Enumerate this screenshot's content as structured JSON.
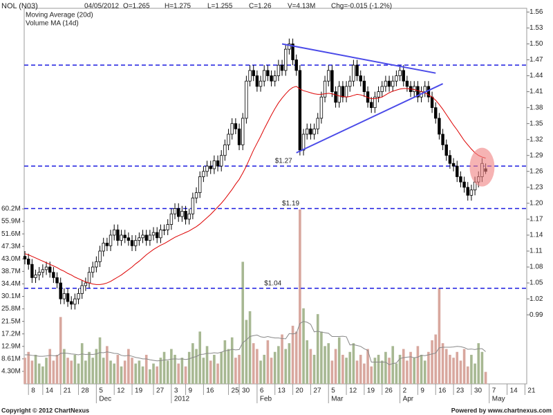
{
  "chart_data": {
    "type": "candlestick",
    "header": {
      "symbol": "NOL (N03)",
      "date": "04/05/2012",
      "open": "O=1.265",
      "high": "H=1.275",
      "low": "L=1.255",
      "close": "C=1.26",
      "volume": "V=4.13M",
      "change": "Chg=-0.015 (-1.2%)"
    },
    "legend": [
      {
        "name": "Moving Average (20d)",
        "color": "#dd0000"
      },
      {
        "name": "Volume MA (14d)",
        "color": "#888888"
      }
    ],
    "footer_left": "Copyright © 2012 ChartNexus",
    "footer_right": "Powered by www.chartnexus.com",
    "up_color": "#ffffff",
    "down_color": "#000000",
    "volume_up_color": "#a7b892",
    "volume_down_color": "#d8a79e",
    "xlim": [
      -0.2,
      140.5
    ],
    "ylim": [
      0.86,
      1.567
    ],
    "y2lim": [
      0,
      129.2
    ],
    "xticks": [
      {
        "value": 1,
        "label": "8"
      },
      {
        "value": 5,
        "label": "14"
      },
      {
        "value": 10,
        "label": "21"
      },
      {
        "value": 15,
        "label": "28"
      },
      {
        "value": 20,
        "label": "5"
      },
      {
        "value": 25,
        "label": "12"
      },
      {
        "value": 30,
        "label": "19"
      },
      {
        "value": 36,
        "label": "27"
      },
      {
        "value": 41,
        "label": "3"
      },
      {
        "value": 45,
        "label": "9"
      },
      {
        "value": 50,
        "label": "16"
      },
      {
        "value": 57,
        "label": "25"
      },
      {
        "value": 60,
        "label": "30"
      },
      {
        "value": 65,
        "label": "6"
      },
      {
        "value": 70,
        "label": "13"
      },
      {
        "value": 75,
        "label": "20"
      },
      {
        "value": 80,
        "label": "27"
      },
      {
        "value": 85,
        "label": "5"
      },
      {
        "value": 90,
        "label": "12"
      },
      {
        "value": 95,
        "label": "19"
      },
      {
        "value": 100,
        "label": "26"
      },
      {
        "value": 105,
        "label": "2"
      },
      {
        "value": 110,
        "label": "9"
      },
      {
        "value": 115,
        "label": "16"
      },
      {
        "value": 120,
        "label": "23"
      },
      {
        "value": 125,
        "label": "30"
      },
      {
        "value": 130,
        "label": "7"
      },
      {
        "value": 135,
        "label": "14"
      },
      {
        "value": 140,
        "label": "21"
      }
    ],
    "xperiods": [
      {
        "value": 20,
        "label": "Dec"
      },
      {
        "value": 41,
        "label": "2012"
      },
      {
        "value": 65,
        "label": "Feb"
      },
      {
        "value": 85,
        "label": "Mar"
      },
      {
        "value": 105,
        "label": "Apr"
      },
      {
        "value": 130,
        "label": "May"
      }
    ],
    "yticks": [
      1.56,
      1.53,
      {
        "value": 1.5,
        "label": "1.50"
      },
      1.47,
      1.44,
      1.41,
      1.38,
      1.35,
      1.32,
      1.29,
      1.26,
      1.23,
      {
        "value": 1.2,
        "label": "1.20"
      },
      1.17,
      1.14,
      1.11,
      1.08,
      1.05,
      1.02,
      0.99
    ],
    "y2ticks": [
      {
        "value": 60.2,
        "label": "60.2M"
      },
      {
        "value": 55.9,
        "label": "55.9M"
      },
      {
        "value": 51.6,
        "label": "51.6M"
      },
      {
        "value": 47.3,
        "label": "47.3M"
      },
      {
        "value": 43.0,
        "label": "43.0M"
      },
      {
        "value": 38.7,
        "label": "38.7M"
      },
      {
        "value": 34.4,
        "label": "34.4M"
      },
      {
        "value": 30.1,
        "label": "30.1M"
      },
      {
        "value": 25.8,
        "label": "25.8M"
      },
      {
        "value": 21.5,
        "label": "21.5M"
      },
      {
        "value": 17.2,
        "label": "17.2M"
      },
      {
        "value": 12.9,
        "label": "12.9M"
      },
      {
        "value": 8.61,
        "label": "8.61M"
      },
      {
        "value": 4.3,
        "label": "4.30M"
      }
    ],
    "open": [
      1.1,
      1.095,
      1.085,
      1.06,
      1.065,
      1.07,
      1.075,
      1.08,
      1.07,
      1.06,
      1.05,
      1.02,
      1.03,
      1.015,
      1.01,
      1.02,
      1.03,
      1.045,
      1.05,
      1.07,
      1.08,
      1.09,
      1.11,
      1.125,
      1.12,
      1.14,
      1.15,
      1.13,
      1.14,
      1.135,
      1.13,
      1.12,
      1.13,
      1.135,
      1.14,
      1.13,
      1.14,
      1.145,
      1.135,
      1.15,
      1.15,
      1.16,
      1.18,
      1.19,
      1.175,
      1.185,
      1.17,
      1.18,
      1.21,
      1.22,
      1.25,
      1.26,
      1.27,
      1.265,
      1.28,
      1.27,
      1.29,
      1.31,
      1.33,
      1.35,
      1.34,
      1.31,
      1.36,
      1.43,
      1.45,
      1.44,
      1.42,
      1.43,
      1.45,
      1.44,
      1.43,
      1.44,
      1.46,
      1.45,
      1.49,
      1.5,
      1.47,
      1.45,
      1.3,
      1.33,
      1.34,
      1.33,
      1.34,
      1.36,
      1.4,
      1.43,
      1.45,
      1.41,
      1.39,
      1.42,
      1.4,
      1.42,
      1.43,
      1.46,
      1.44,
      1.43,
      1.41,
      1.39,
      1.38,
      1.4,
      1.41,
      1.42,
      1.43,
      1.42,
      1.43,
      1.44,
      1.45,
      1.43,
      1.42,
      1.41,
      1.42,
      1.4,
      1.41,
      1.42,
      1.4,
      1.38,
      1.36,
      1.33,
      1.31,
      1.29,
      1.275,
      1.27,
      1.25,
      1.24,
      1.23,
      1.215,
      1.225,
      1.24,
      1.25,
      1.265
    ],
    "high": [
      1.11,
      1.105,
      1.095,
      1.075,
      1.08,
      1.085,
      1.09,
      1.09,
      1.08,
      1.07,
      1.06,
      1.04,
      1.04,
      1.025,
      1.03,
      1.04,
      1.055,
      1.06,
      1.08,
      1.09,
      1.1,
      1.12,
      1.135,
      1.135,
      1.15,
      1.16,
      1.16,
      1.15,
      1.15,
      1.145,
      1.14,
      1.14,
      1.145,
      1.15,
      1.15,
      1.15,
      1.155,
      1.155,
      1.16,
      1.16,
      1.17,
      1.19,
      1.2,
      1.2,
      1.195,
      1.195,
      1.19,
      1.22,
      1.23,
      1.26,
      1.27,
      1.28,
      1.28,
      1.29,
      1.29,
      1.3,
      1.32,
      1.34,
      1.36,
      1.36,
      1.35,
      1.37,
      1.44,
      1.46,
      1.46,
      1.45,
      1.44,
      1.46,
      1.46,
      1.45,
      1.45,
      1.47,
      1.47,
      1.5,
      1.51,
      1.51,
      1.48,
      1.46,
      1.34,
      1.35,
      1.35,
      1.35,
      1.37,
      1.41,
      1.44,
      1.46,
      1.46,
      1.42,
      1.43,
      1.43,
      1.43,
      1.44,
      1.47,
      1.47,
      1.45,
      1.44,
      1.42,
      1.4,
      1.41,
      1.42,
      1.43,
      1.44,
      1.44,
      1.44,
      1.45,
      1.46,
      1.46,
      1.44,
      1.43,
      1.43,
      1.43,
      1.42,
      1.43,
      1.43,
      1.41,
      1.39,
      1.37,
      1.34,
      1.32,
      1.3,
      1.285,
      1.28,
      1.26,
      1.25,
      1.24,
      1.235,
      1.25,
      1.26,
      1.285,
      1.275
    ],
    "low": [
      1.085,
      1.075,
      1.05,
      1.05,
      1.055,
      1.06,
      1.065,
      1.06,
      1.05,
      1.04,
      1.01,
      1.01,
      1.005,
      1.0,
      1.0,
      1.01,
      1.02,
      1.035,
      1.04,
      1.06,
      1.07,
      1.08,
      1.1,
      1.11,
      1.11,
      1.13,
      1.12,
      1.12,
      1.125,
      1.12,
      1.11,
      1.11,
      1.12,
      1.125,
      1.12,
      1.12,
      1.13,
      1.125,
      1.125,
      1.14,
      1.14,
      1.15,
      1.17,
      1.165,
      1.165,
      1.16,
      1.16,
      1.17,
      1.2,
      1.21,
      1.24,
      1.25,
      1.255,
      1.255,
      1.26,
      1.26,
      1.28,
      1.3,
      1.32,
      1.33,
      1.3,
      1.3,
      1.35,
      1.42,
      1.43,
      1.41,
      1.41,
      1.42,
      1.43,
      1.42,
      1.42,
      1.43,
      1.44,
      1.44,
      1.48,
      1.46,
      1.44,
      1.29,
      1.29,
      1.32,
      1.32,
      1.32,
      1.33,
      1.35,
      1.39,
      1.42,
      1.4,
      1.38,
      1.38,
      1.39,
      1.39,
      1.41,
      1.42,
      1.43,
      1.42,
      1.4,
      1.38,
      1.37,
      1.37,
      1.39,
      1.4,
      1.41,
      1.41,
      1.41,
      1.42,
      1.43,
      1.42,
      1.41,
      1.4,
      1.4,
      1.39,
      1.39,
      1.4,
      1.39,
      1.37,
      1.35,
      1.32,
      1.3,
      1.28,
      1.265,
      1.26,
      1.24,
      1.23,
      1.22,
      1.205,
      1.205,
      1.215,
      1.23,
      1.24,
      1.255
    ],
    "close": [
      1.095,
      1.085,
      1.06,
      1.065,
      1.07,
      1.075,
      1.08,
      1.07,
      1.06,
      1.05,
      1.02,
      1.03,
      1.015,
      1.01,
      1.02,
      1.03,
      1.045,
      1.05,
      1.07,
      1.08,
      1.09,
      1.11,
      1.125,
      1.12,
      1.14,
      1.15,
      1.13,
      1.14,
      1.135,
      1.13,
      1.12,
      1.13,
      1.135,
      1.14,
      1.13,
      1.14,
      1.145,
      1.135,
      1.15,
      1.15,
      1.16,
      1.18,
      1.19,
      1.175,
      1.185,
      1.17,
      1.18,
      1.21,
      1.22,
      1.25,
      1.26,
      1.27,
      1.265,
      1.28,
      1.27,
      1.29,
      1.31,
      1.33,
      1.35,
      1.34,
      1.31,
      1.36,
      1.43,
      1.45,
      1.44,
      1.42,
      1.43,
      1.45,
      1.44,
      1.43,
      1.44,
      1.46,
      1.45,
      1.49,
      1.5,
      1.47,
      1.45,
      1.3,
      1.33,
      1.34,
      1.33,
      1.34,
      1.36,
      1.4,
      1.43,
      1.45,
      1.41,
      1.39,
      1.42,
      1.4,
      1.42,
      1.43,
      1.46,
      1.44,
      1.43,
      1.41,
      1.39,
      1.38,
      1.4,
      1.41,
      1.42,
      1.43,
      1.42,
      1.43,
      1.44,
      1.45,
      1.43,
      1.42,
      1.41,
      1.42,
      1.4,
      1.41,
      1.42,
      1.4,
      1.38,
      1.36,
      1.33,
      1.31,
      1.29,
      1.275,
      1.27,
      1.25,
      1.24,
      1.23,
      1.215,
      1.225,
      1.24,
      1.25,
      1.275,
      1.26
    ],
    "volume": [
      9,
      11,
      8,
      10,
      7,
      6,
      9,
      12,
      8,
      10,
      23,
      12,
      9,
      8,
      10,
      7,
      14,
      8,
      11,
      9,
      12,
      16,
      9,
      13,
      8,
      7,
      10,
      6,
      8,
      12,
      9,
      7,
      8,
      6,
      10,
      5,
      7,
      6,
      9,
      11,
      8,
      12,
      10,
      7,
      9,
      6,
      11,
      14,
      12,
      18,
      9,
      13,
      8,
      10,
      7,
      11,
      15,
      12,
      16,
      9,
      10,
      42,
      22,
      25,
      14,
      12,
      8,
      10,
      15,
      9,
      11,
      13,
      17,
      12,
      14,
      20,
      18,
      60,
      26,
      15,
      12,
      10,
      24,
      18,
      13,
      14,
      8,
      12,
      16,
      10,
      9,
      11,
      14,
      8,
      10,
      7,
      12,
      6,
      9,
      10,
      8,
      11,
      9,
      13,
      7,
      10,
      12,
      8,
      11,
      9,
      13,
      10,
      8,
      11,
      15,
      17,
      33,
      14,
      12,
      10,
      9,
      11,
      8,
      12,
      6,
      10,
      7,
      14,
      11,
      4.13
    ],
    "ma": [
      1.105,
      1.103,
      1.1,
      1.097,
      1.094,
      1.091,
      1.088,
      1.085,
      1.082,
      1.079,
      1.075,
      1.072,
      1.068,
      1.065,
      1.061,
      1.058,
      1.055,
      1.052,
      1.05,
      1.048,
      1.047,
      1.047,
      1.048,
      1.05,
      1.053,
      1.057,
      1.061,
      1.065,
      1.07,
      1.075,
      1.08,
      1.086,
      1.091,
      1.097,
      1.103,
      1.108,
      1.113,
      1.117,
      1.121,
      1.124,
      1.128,
      1.132,
      1.136,
      1.139,
      1.142,
      1.145,
      1.148,
      1.152,
      1.156,
      1.161,
      1.167,
      1.173,
      1.179,
      1.186,
      1.193,
      1.2,
      1.208,
      1.217,
      1.226,
      1.236,
      1.245,
      1.257,
      1.27,
      1.285,
      1.3,
      1.313,
      1.326,
      1.34,
      1.353,
      1.366,
      1.378,
      1.389,
      1.398,
      1.406,
      1.413,
      1.418,
      1.42,
      1.415,
      1.412,
      1.41,
      1.408,
      1.406,
      1.405,
      1.405,
      1.406,
      1.407,
      1.406,
      1.404,
      1.402,
      1.401,
      1.4,
      1.401,
      1.403,
      1.405,
      1.404,
      1.402,
      1.399,
      1.397,
      1.397,
      1.398,
      1.4,
      1.404,
      1.408,
      1.411,
      1.413,
      1.415,
      1.416,
      1.416,
      1.415,
      1.414,
      1.412,
      1.41,
      1.408,
      1.404,
      1.4,
      1.394,
      1.386,
      1.377,
      1.367,
      1.357,
      1.347,
      1.338,
      1.328,
      1.318,
      1.31,
      1.302,
      1.295,
      1.29,
      1.287,
      1.285
    ],
    "volume_ma": [
      10,
      10,
      9.8,
      9.7,
      9.5,
      9.5,
      9.6,
      9.8,
      9.7,
      9.6,
      10.5,
      10.6,
      10.5,
      10.3,
      10.2,
      10,
      10.3,
      10.1,
      10.2,
      10.1,
      10.3,
      10.8,
      10.7,
      11,
      10.8,
      10.5,
      10.4,
      9.8,
      9.6,
      9.8,
      9.5,
      9.1,
      8.9,
      8.6,
      8.6,
      8.3,
      8.1,
      7.9,
      8,
      8.2,
      8.3,
      8.5,
      8.6,
      8.5,
      8.6,
      8.4,
      8.6,
      9.1,
      9.4,
      10.1,
      10.2,
      10.5,
      10.5,
      10.7,
      10.6,
      10.9,
      11.4,
      11.5,
      11.9,
      11.7,
      11.8,
      14.2,
      15.1,
      16.3,
      16.6,
      16.8,
      16.2,
      16,
      16.3,
      16,
      15.8,
      15.8,
      15.6,
      15.5,
      17.3,
      17.2,
      17.4,
      20.8,
      21.5,
      21.2,
      20.5,
      17.9,
      18.1,
      17.8,
      17.6,
      17.4,
      16.3,
      16.3,
      16.3,
      16.4,
      16.2,
      13.4,
      13.5,
      13.2,
      12.9,
      12.1,
      11.5,
      7.5,
      7.5,
      7.5,
      7.5,
      7.5,
      6.6,
      7,
      7.2,
      8.7,
      9,
      9.2,
      9.3,
      9,
      9.2,
      9.8,
      9.7,
      10,
      10.3,
      10.6,
      12.4,
      12.6,
      12.6,
      12.6,
      12.7,
      12.9,
      12.8,
      12.5,
      11.9,
      12,
      11.8,
      12.1,
      12.1,
      11.1
    ],
    "levels": [
      {
        "value": 1.46
      },
      {
        "value": 1.27,
        "label": "$1.27",
        "at": 70
      },
      {
        "value": 1.19,
        "label": "$1.19",
        "at": 72
      },
      {
        "value": 1.04,
        "label": "$1.04",
        "at": 67
      }
    ],
    "level_color": "#1a1adf",
    "trendlines": [
      {
        "x": [
          72,
          115
        ],
        "y": [
          1.5,
          1.445
        ]
      },
      {
        "x": [
          76,
          117
        ],
        "y": [
          1.295,
          1.425
        ]
      }
    ],
    "trend_color": "#4a4ae8",
    "highlight": {
      "x": 128,
      "y": 1.268,
      "color": "#f08080"
    }
  }
}
